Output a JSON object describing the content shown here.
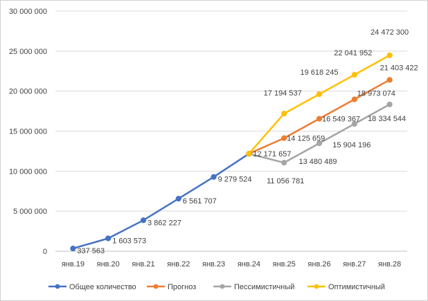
{
  "chart_data": {
    "type": "line",
    "title": "",
    "xlabel": "",
    "ylabel": "",
    "categories": [
      "янв.19",
      "янв.20",
      "янв.21",
      "янв.22",
      "янв.23",
      "янв.24",
      "янв.25",
      "янв.26",
      "янв.27",
      "янв.28"
    ],
    "ylim": [
      0,
      30000000
    ],
    "yticks": [
      0,
      5000000,
      10000000,
      15000000,
      20000000,
      25000000,
      30000000
    ],
    "ytick_labels": [
      "0",
      "5 000 000",
      "10 000 000",
      "15 000 000",
      "20 000 000",
      "25 000 000",
      "30 000 000"
    ],
    "grid": true,
    "legend_position": "bottom",
    "series": [
      {
        "name": "Общее количество",
        "color": "#4472C4",
        "values": [
          337563,
          1603573,
          3862227,
          6561707,
          9279524,
          12171657,
          null,
          null,
          null,
          null
        ],
        "labels": [
          "337 563",
          "1 603 573",
          "3 862 227",
          "6 561 707",
          "9 279 524",
          null,
          null,
          null,
          null,
          null
        ]
      },
      {
        "name": "Прогноз",
        "color": "#ED7D31",
        "values": [
          null,
          null,
          null,
          null,
          null,
          12171657,
          14125659,
          16549367,
          18973074,
          21403422
        ],
        "labels": [
          null,
          null,
          null,
          null,
          null,
          "12 171 657",
          "14 125 659",
          "16 549 367",
          "18 973 074",
          "21 403 422"
        ]
      },
      {
        "name": "Пессимистичный",
        "color": "#A5A5A5",
        "values": [
          null,
          null,
          null,
          null,
          null,
          12171657,
          11056781,
          13480489,
          15904196,
          18334544
        ],
        "labels": [
          null,
          null,
          null,
          null,
          null,
          null,
          "11 056 781",
          "13 480 489",
          "15 904 196",
          "18 334 544"
        ]
      },
      {
        "name": "Оптимистичный",
        "color": "#FFC000",
        "values": [
          null,
          null,
          null,
          null,
          null,
          12171657,
          17194537,
          19618245,
          22041952,
          24472300
        ],
        "labels": [
          null,
          null,
          null,
          null,
          null,
          null,
          "17 194 537",
          "19 618 245",
          "22 041 952",
          "24 472 300"
        ]
      }
    ]
  }
}
